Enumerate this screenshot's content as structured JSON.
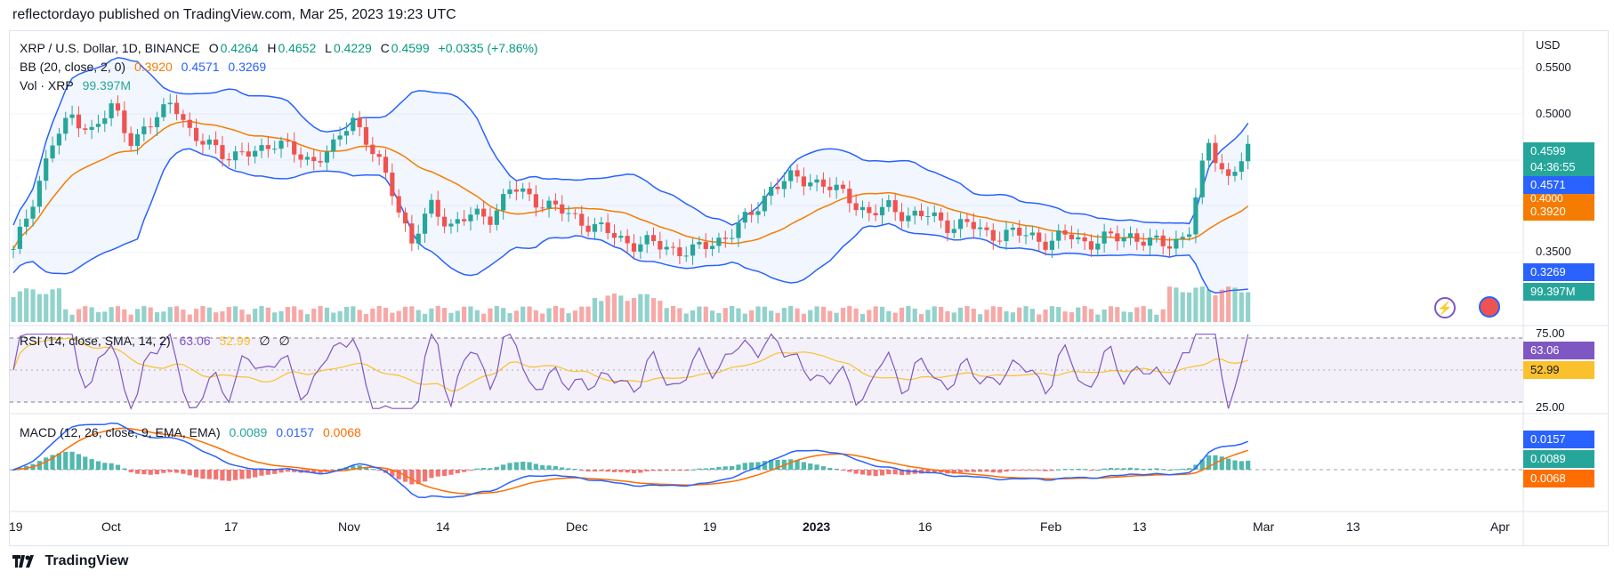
{
  "publish_line": "reflectordayo published on TradingView.com, Mar 25, 2023 19:23 UTC",
  "legend": {
    "symbol": "XRP / U.S. Dollar, 1D, BINANCE",
    "o_label": "O",
    "o_value": "0.4264",
    "h_label": "H",
    "h_value": "0.4652",
    "l_label": "L",
    "l_value": "0.4229",
    "c_label": "C",
    "c_value": "0.4599",
    "change": "+0.0335 (+7.86%)",
    "bb_label": "BB (20, close, 2, 0)",
    "bb_values": [
      "0.3920",
      "0.4571",
      "0.3269"
    ],
    "vol_label": "Vol · XRP",
    "vol_value": "99.397M",
    "rsi_label": "RSI (14, close, SMA, 14, 2)",
    "rsi_values": [
      "63.06",
      "52.99",
      "∅",
      "∅"
    ],
    "macd_label": "MACD (12, 26, close, 9, EMA, EMA)",
    "macd_values": [
      "0.0089",
      "0.0157",
      "0.0068"
    ]
  },
  "price_axis": {
    "currency": "USD",
    "ticks": [
      "0.5500",
      "0.5000",
      "0.3500"
    ],
    "tags": {
      "close": "0.4599",
      "countdown": "04:36:55",
      "bb_upper": "0.4571",
      "bb_basis": "0.3920",
      "bb_hidden": "0.4000",
      "bb_lower": "0.3269",
      "volume": "99.397M"
    }
  },
  "rsi_axis": {
    "ticks": [
      "75.00",
      "25.00"
    ],
    "tags": [
      "63.06",
      "52.99"
    ]
  },
  "macd_axis": {
    "tags": [
      "0.0157",
      "0.0089",
      "0.0068"
    ]
  },
  "time_axis": [
    "19",
    "Oct",
    "17",
    "Nov",
    "14",
    "Dec",
    "19",
    "2023",
    "16",
    "Feb",
    "13",
    "Mar",
    "13",
    "Apr"
  ],
  "footer": {
    "brand": "TradingView"
  },
  "colors": {
    "up": "#26a69a",
    "down": "#ef5350",
    "bb": "#2962ff",
    "basis": "#f57c00",
    "rsi": "#7e57c2",
    "rsi_ma": "#fbc02d",
    "macd": "#2962ff",
    "signal": "#ff6d00"
  }
}
